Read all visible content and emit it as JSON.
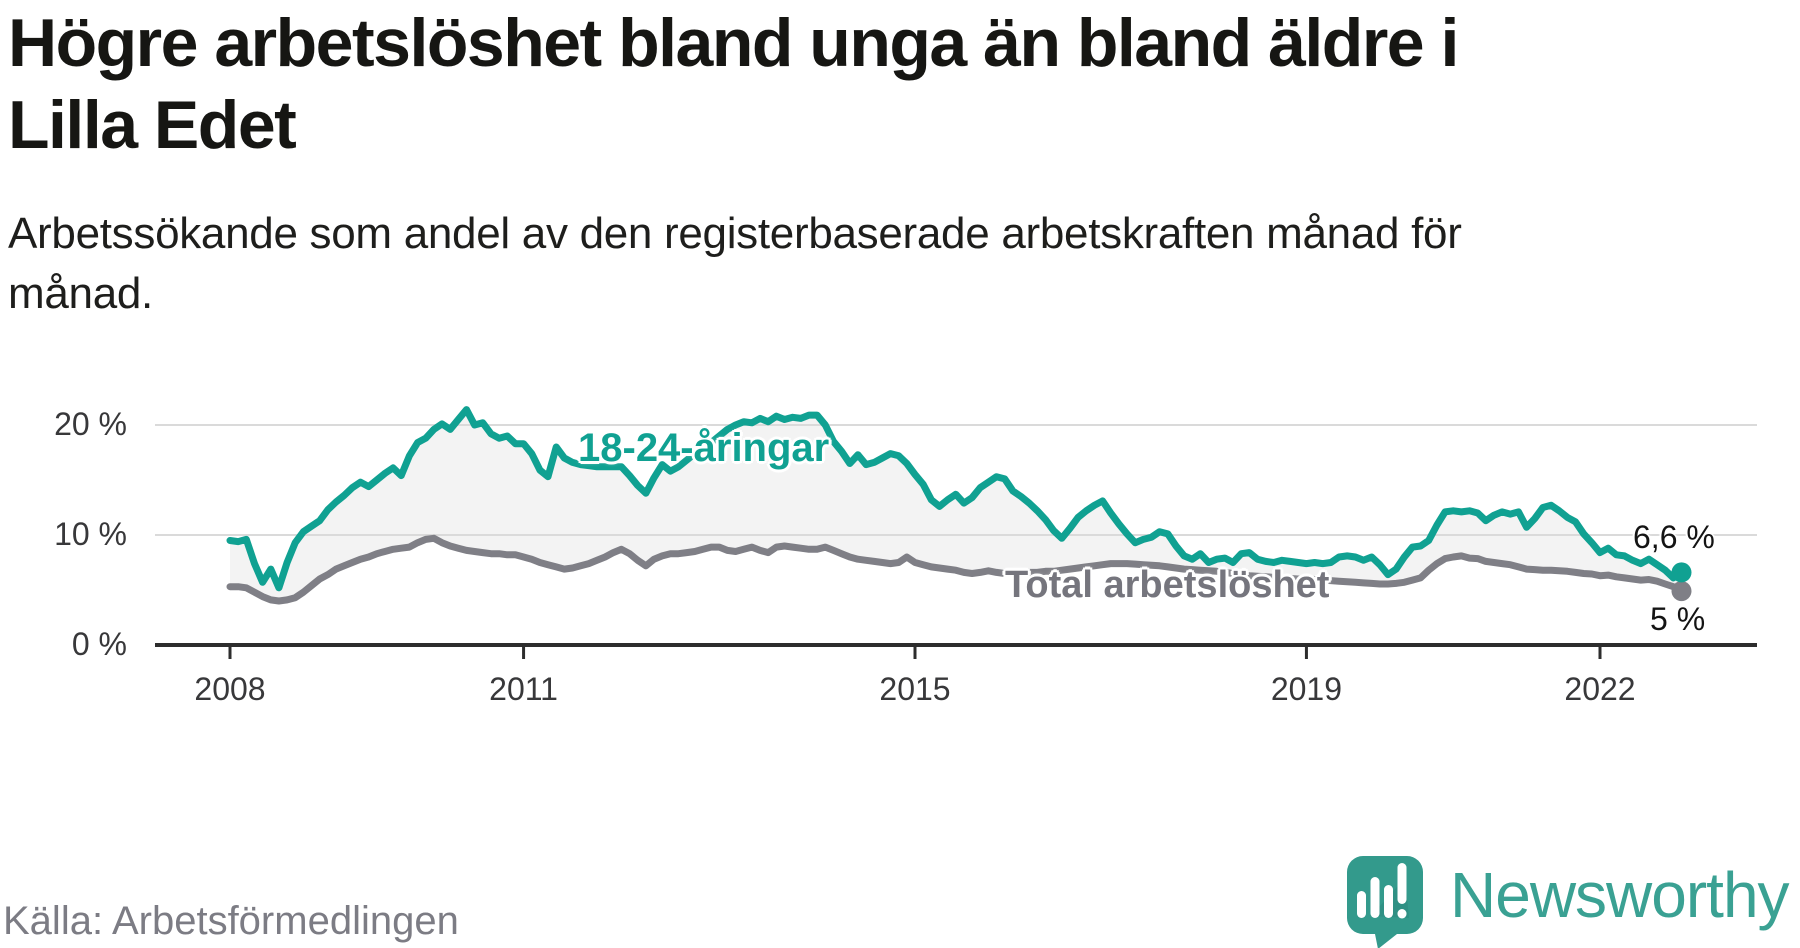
{
  "header": {
    "title_lines": [
      "Högre arbetslöshet bland unga än bland äldre i",
      "Lilla Edet"
    ],
    "subtitle_lines": [
      "Arbetssökande som andel av den registerbaserade arbetskraften månad för",
      "månad."
    ]
  },
  "footer": {
    "source": "Källa: Arbetsförmedlingen",
    "brand": "Newsworthy",
    "brand_color": "#3aa193",
    "logo_icon": "bar-chart-speech-bubble-icon"
  },
  "chart_data": {
    "type": "line",
    "title": "Högre arbetslöshet bland unga än bland äldre i Lilla Edet",
    "subtitle": "Arbetssökande som andel av den registerbaserade arbetskraften månad för månad.",
    "xlabel": "",
    "ylabel": "",
    "grid": "horizontal",
    "ylim": [
      0,
      23
    ],
    "x_range_years": [
      2008.0,
      2023.6
    ],
    "x_ticks": [
      {
        "year": 2008,
        "label": "2008"
      },
      {
        "year": 2011,
        "label": "2011"
      },
      {
        "year": 2015,
        "label": "2015"
      },
      {
        "year": 2019,
        "label": "2019"
      },
      {
        "year": 2022,
        "label": "2022"
      }
    ],
    "y_ticks": [
      {
        "value": 0,
        "label": "0 %"
      },
      {
        "value": 10,
        "label": "10 %"
      },
      {
        "value": 20,
        "label": "20 %"
      }
    ],
    "fill_between_series_color": "#f3f3f3",
    "series": [
      {
        "name": "18-24-åringar",
        "color": "#10a192",
        "end_label": "6,6 %",
        "start_year": 2008.0,
        "step_months": 1,
        "values": [
          9.5,
          9.4,
          9.6,
          7.4,
          5.7,
          6.9,
          5.2,
          7.5,
          9.3,
          10.3,
          10.8,
          11.3,
          12.3,
          13.0,
          13.6,
          14.3,
          14.8,
          14.4,
          15.0,
          15.6,
          16.1,
          15.4,
          17.2,
          18.4,
          18.8,
          19.6,
          20.1,
          19.6,
          20.5,
          21.4,
          20.0,
          20.2,
          19.2,
          18.8,
          19.0,
          18.3,
          18.3,
          17.4,
          15.9,
          15.3,
          18.0,
          17.0,
          16.6,
          16.4,
          16.3,
          16.2,
          16.2,
          16.2,
          16.2,
          15.4,
          14.5,
          13.8,
          15.2,
          16.4,
          15.8,
          16.2,
          16.8,
          17.4,
          17.9,
          18.4,
          19.0,
          19.6,
          20.0,
          20.3,
          20.2,
          20.6,
          20.3,
          20.8,
          20.5,
          20.7,
          20.6,
          20.9,
          20.9,
          20.0,
          18.5,
          17.6,
          16.5,
          17.3,
          16.4,
          16.6,
          17.0,
          17.4,
          17.2,
          16.5,
          15.5,
          14.6,
          13.2,
          12.6,
          13.2,
          13.7,
          12.9,
          13.4,
          14.3,
          14.8,
          15.3,
          15.1,
          14.0,
          13.5,
          12.9,
          12.2,
          11.4,
          10.4,
          9.7,
          10.6,
          11.6,
          12.2,
          12.7,
          13.1,
          12.0,
          11.0,
          10.1,
          9.3,
          9.6,
          9.8,
          10.3,
          10.1,
          9.0,
          8.1,
          7.8,
          8.3,
          7.5,
          7.8,
          7.9,
          7.5,
          8.3,
          8.4,
          7.8,
          7.6,
          7.5,
          7.7,
          7.6,
          7.5,
          7.4,
          7.5,
          7.4,
          7.5,
          8.0,
          8.1,
          8.0,
          7.7,
          8.0,
          7.3,
          6.4,
          6.9,
          8.0,
          8.9,
          9.0,
          9.5,
          10.9,
          12.1,
          12.2,
          12.1,
          12.2,
          12.0,
          11.3,
          11.8,
          12.1,
          11.9,
          12.1,
          10.7,
          11.5,
          12.5,
          12.7,
          12.2,
          11.6,
          11.2,
          10.1,
          9.3,
          8.4,
          8.8,
          8.2,
          8.1,
          7.7,
          7.4,
          7.8,
          7.3,
          6.8,
          6.1,
          6.6
        ]
      },
      {
        "name": "Total arbetslöshet",
        "color": "#7f7f86",
        "label_color": "#75757d",
        "end_label": "5 %",
        "start_year": 2008.0,
        "step_months": 1,
        "values": [
          5.3,
          5.3,
          5.2,
          4.8,
          4.4,
          4.1,
          4.0,
          4.1,
          4.3,
          4.8,
          5.4,
          6.0,
          6.4,
          6.9,
          7.2,
          7.5,
          7.8,
          8.0,
          8.3,
          8.5,
          8.7,
          8.8,
          8.9,
          9.3,
          9.6,
          9.7,
          9.3,
          9.0,
          8.8,
          8.6,
          8.5,
          8.4,
          8.3,
          8.3,
          8.2,
          8.2,
          8.0,
          7.8,
          7.5,
          7.3,
          7.1,
          6.9,
          7.0,
          7.2,
          7.4,
          7.7,
          8.0,
          8.4,
          8.7,
          8.3,
          7.7,
          7.2,
          7.8,
          8.1,
          8.3,
          8.3,
          8.4,
          8.5,
          8.7,
          8.9,
          8.9,
          8.6,
          8.5,
          8.7,
          8.9,
          8.6,
          8.4,
          8.9,
          9.0,
          8.9,
          8.8,
          8.7,
          8.7,
          8.9,
          8.6,
          8.3,
          8.0,
          7.8,
          7.7,
          7.6,
          7.5,
          7.4,
          7.5,
          8.0,
          7.5,
          7.3,
          7.1,
          7.0,
          6.9,
          6.8,
          6.6,
          6.5,
          6.6,
          6.75,
          6.6,
          6.5,
          6.5,
          6.5,
          6.6,
          6.6,
          6.7,
          6.7,
          6.8,
          6.9,
          7.0,
          7.1,
          7.2,
          7.3,
          7.4,
          7.4,
          7.4,
          7.35,
          7.3,
          7.25,
          7.2,
          7.1,
          7.0,
          6.9,
          6.85,
          6.8,
          6.75,
          6.7,
          6.6,
          6.5,
          6.4,
          6.3,
          6.25,
          6.2,
          6.15,
          6.1,
          6.05,
          6.0,
          6.0,
          5.95,
          5.9,
          5.85,
          5.8,
          5.75,
          5.7,
          5.65,
          5.6,
          5.55,
          5.55,
          5.6,
          5.7,
          5.9,
          6.1,
          6.8,
          7.4,
          7.85,
          8.0,
          8.1,
          7.9,
          7.85,
          7.6,
          7.5,
          7.4,
          7.3,
          7.1,
          6.9,
          6.85,
          6.8,
          6.8,
          6.75,
          6.7,
          6.6,
          6.5,
          6.45,
          6.3,
          6.35,
          6.2,
          6.1,
          6.0,
          5.9,
          5.95,
          5.8,
          5.55,
          5.3,
          4.9
        ]
      }
    ],
    "colors": {
      "gridline": "#dadada",
      "axis": "#2d2d2d",
      "tick_text": "#38383a"
    }
  }
}
